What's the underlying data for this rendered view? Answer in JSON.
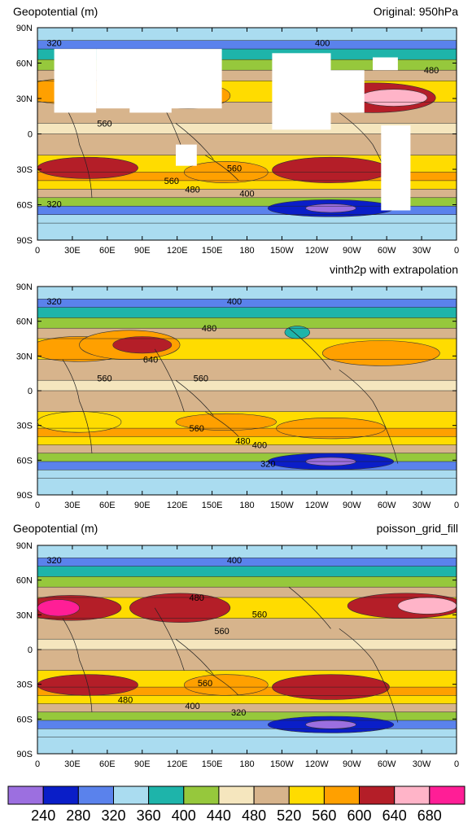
{
  "colors": {
    "frame": "#000000",
    "land": "#ffffff",
    "palette": [
      "#9c6fe0",
      "#0a1ec8",
      "#5a82ec",
      "#aadcf0",
      "#1eb4aa",
      "#96c83c",
      "#f5e6be",
      "#d7b48c",
      "#ffdc00",
      "#ffa000",
      "#b41e28",
      "#ffb4c8",
      "#ff1e96"
    ]
  },
  "chart_data": [
    {
      "type": "heatmap",
      "title": "Geopotential (m)",
      "subtitle": "Original: 950hPa",
      "xlabel": "",
      "ylabel": "",
      "x_ticks": [
        "0",
        "30E",
        "60E",
        "90E",
        "120E",
        "150E",
        "180",
        "150W",
        "120W",
        "90W",
        "60W",
        "30W",
        "0"
      ],
      "y_ticks": [
        "90N",
        "60N",
        "30N",
        "0",
        "30S",
        "60S",
        "90S"
      ],
      "contour_labels": [
        "320",
        "400",
        "480",
        "560",
        "560",
        "560",
        "480",
        "400",
        "320"
      ],
      "missing_over_high_terrain": true
    },
    {
      "type": "heatmap",
      "title": "",
      "subtitle": "vinth2p with extrapolation",
      "xlabel": "",
      "ylabel": "",
      "x_ticks": [
        "0",
        "30E",
        "60E",
        "90E",
        "120E",
        "150E",
        "180",
        "150W",
        "120W",
        "90W",
        "60W",
        "30W",
        "0"
      ],
      "y_ticks": [
        "90N",
        "60N",
        "30N",
        "0",
        "30S",
        "60S",
        "90S"
      ],
      "contour_labels": [
        "320",
        "400",
        "480",
        "560",
        "640",
        "560",
        "560",
        "480",
        "400",
        "320"
      ]
    },
    {
      "type": "heatmap",
      "title": "Geopotential (m)",
      "subtitle": "poisson_grid_fill",
      "xlabel": "",
      "ylabel": "",
      "x_ticks": [
        "0",
        "30E",
        "60E",
        "90E",
        "120E",
        "150E",
        "180",
        "150W",
        "120W",
        "90W",
        "60W",
        "30W",
        "0"
      ],
      "y_ticks": [
        "90N",
        "60N",
        "30N",
        "0",
        "30S",
        "60S",
        "90S"
      ],
      "contour_labels": [
        "320",
        "400",
        "480",
        "560",
        "560",
        "560",
        "480",
        "400",
        "320"
      ]
    }
  ],
  "colorbar": {
    "levels": [
      "240",
      "280",
      "320",
      "360",
      "400",
      "440",
      "480",
      "520",
      "560",
      "600",
      "640",
      "680"
    ]
  }
}
